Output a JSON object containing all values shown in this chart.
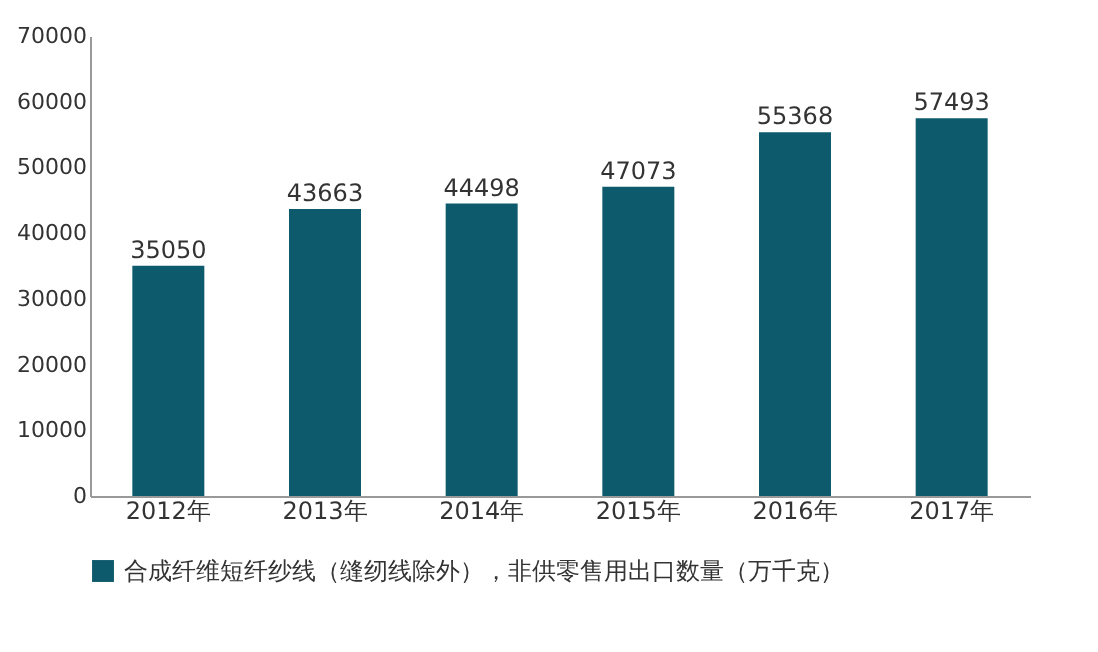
{
  "chart_data": {
    "type": "bar",
    "categories": [
      "2012年",
      "2013年",
      "2014年",
      "2015年",
      "2016年",
      "2017年"
    ],
    "series": [
      {
        "name": "合成纤维短纤纱线（缝纫线除外），非供零售用出口数量（万千克）",
        "color": "#0e5a6d",
        "values": [
          35050,
          43663,
          44498,
          47073,
          55368,
          57493
        ]
      }
    ],
    "ylim": [
      0,
      70000
    ],
    "yticks": [
      0,
      10000,
      20000,
      30000,
      40000,
      50000,
      60000,
      70000
    ],
    "data_labels": true,
    "grid": false,
    "legend": "bottom"
  }
}
